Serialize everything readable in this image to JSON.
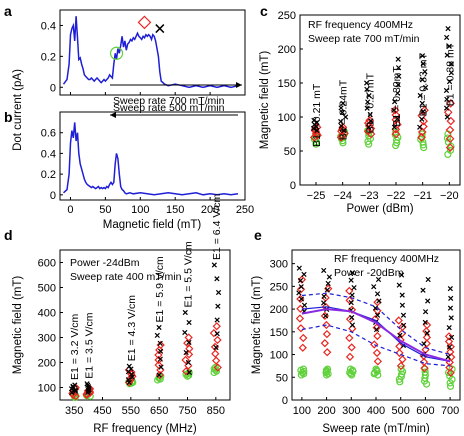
{
  "panels": {
    "a": "a",
    "b": "b",
    "c": "c",
    "d": "d",
    "e": "e"
  },
  "colors": {
    "blue": "#1f1fd6",
    "red": "#e8261f",
    "green": "#5fd13a",
    "black": "#000000",
    "purple": "#8a2be2"
  },
  "chart_data": [
    {
      "id": "a",
      "type": "line",
      "ylabel": "Dot current (pA)",
      "yticks": [
        "0",
        "0.2",
        "0.4"
      ],
      "ylim": [
        -0.05,
        0.5
      ],
      "xlim": [
        -15,
        250
      ],
      "annotation": "Sweep rate  700 mT/min",
      "x": [
        -10,
        -5,
        -2,
        0,
        2,
        4,
        6,
        8,
        10,
        12,
        14,
        16,
        18,
        20,
        22,
        24,
        26,
        28,
        30,
        32,
        34,
        36,
        38,
        40,
        42,
        44,
        46,
        48,
        50,
        52,
        54,
        56,
        58,
        60,
        62,
        64,
        66,
        68,
        70,
        72,
        74,
        76,
        78,
        80,
        82,
        84,
        86,
        88,
        90,
        92,
        94,
        96,
        98,
        100,
        102,
        104,
        106,
        108,
        110,
        112,
        114,
        116,
        118,
        120,
        122,
        124,
        126,
        128,
        130,
        135,
        140,
        150,
        160,
        170,
        180,
        190,
        200,
        210,
        220,
        230,
        240
      ],
      "y": [
        0.02,
        0.05,
        0.15,
        0.34,
        0.38,
        0.4,
        0.3,
        0.46,
        0.32,
        0.18,
        0.19,
        0.15,
        0.12,
        0.08,
        0.07,
        0.06,
        0.05,
        0.05,
        0.06,
        0.05,
        0.04,
        0.05,
        0.06,
        0.05,
        0.04,
        0.03,
        0.04,
        0.05,
        0.04,
        0.05,
        0.06,
        0.08,
        0.07,
        0.06,
        0.15,
        0.22,
        0.18,
        0.25,
        0.22,
        0.27,
        0.33,
        0.26,
        0.3,
        0.24,
        0.28,
        0.29,
        0.31,
        0.3,
        0.32,
        0.31,
        0.33,
        0.35,
        0.33,
        0.32,
        0.31,
        0.33,
        0.32,
        0.34,
        0.33,
        0.34,
        0.33,
        0.31,
        0.34,
        0.33,
        0.3,
        0.25,
        0.2,
        0.1,
        0.04,
        0.02,
        0.01,
        0.02,
        0.01,
        0.0,
        0.01,
        0.0,
        0.01,
        0.0,
        0.01,
        0.0,
        0.01
      ],
      "markers": [
        {
          "kind": "circle",
          "x": 66,
          "y": 0.22,
          "color": "#5fd13a"
        },
        {
          "kind": "diamond",
          "x": 106,
          "y": 0.42,
          "color": "#e8261f"
        },
        {
          "kind": "cross",
          "x": 128,
          "y": 0.38,
          "color": "#000000"
        }
      ]
    },
    {
      "id": "b",
      "type": "line",
      "ylabel": "Dot current (pA)",
      "xlabel": "Magnetic field (mT)",
      "yticks": [
        "0",
        "0.2",
        "0.4",
        "0.6"
      ],
      "xticks": [
        "0",
        "50",
        "100",
        "150",
        "200",
        "250"
      ],
      "ylim": [
        -0.05,
        0.8
      ],
      "xlim": [
        -15,
        250
      ],
      "annotation": "Sweep rate  500 mT/min",
      "x": [
        -10,
        -5,
        -2,
        0,
        2,
        4,
        6,
        8,
        10,
        12,
        14,
        16,
        18,
        20,
        22,
        24,
        26,
        28,
        30,
        32,
        34,
        36,
        38,
        40,
        42,
        44,
        46,
        48,
        50,
        52,
        54,
        56,
        58,
        60,
        62,
        64,
        66,
        68,
        70,
        72,
        74,
        76,
        78,
        80,
        85,
        90,
        100,
        110,
        120,
        130,
        140,
        150,
        160,
        170,
        180,
        190,
        200,
        210,
        220,
        230,
        240
      ],
      "y": [
        0.02,
        0.05,
        0.2,
        0.5,
        0.62,
        0.55,
        0.7,
        0.52,
        0.6,
        0.4,
        0.3,
        0.25,
        0.2,
        0.15,
        0.12,
        0.1,
        0.09,
        0.08,
        0.07,
        0.08,
        0.07,
        0.06,
        0.07,
        0.08,
        0.06,
        0.07,
        0.06,
        0.07,
        0.06,
        0.08,
        0.07,
        0.1,
        0.12,
        0.1,
        0.12,
        0.3,
        0.4,
        0.35,
        0.2,
        0.08,
        0.05,
        0.04,
        0.02,
        0.01,
        0.02,
        0.01,
        0.02,
        0.01,
        0.0,
        0.01,
        0.02,
        0.01,
        0.0,
        0.01,
        0.02,
        0.0,
        0.01,
        0.0,
        0.01,
        0.0,
        0.01
      ]
    },
    {
      "id": "c",
      "type": "scatter",
      "xlabel": "Power (dBm)",
      "ylabel": "Magnetic field (mT)",
      "xticks": [
        "-25",
        "-24",
        "-23",
        "-22",
        "-21",
        "-20"
      ],
      "yticks": [
        "0",
        "50",
        "100",
        "150",
        "200",
        "250"
      ],
      "xlim": [
        -25.6,
        -19.6
      ],
      "ylim": [
        0,
        250
      ],
      "text": [
        "RF frequency 400MHz",
        "Sweep rate  700 mT/min"
      ],
      "b_labels": [
        "B1 = 0.21 mT",
        "B1 = 0.24mT",
        "B1 = 0.27mT",
        "B1 = 0.30mT",
        "B1 = 0.33 mT",
        "B1 = 0.38 mT"
      ],
      "x": [
        -25,
        -24,
        -23,
        -22,
        -21,
        -20
      ],
      "green_min": [
        60,
        62,
        60,
        58,
        55,
        45
      ],
      "green_max": [
        78,
        78,
        80,
        78,
        75,
        75
      ],
      "red_min": [
        70,
        70,
        75,
        75,
        70,
        55
      ],
      "red_max": [
        85,
        85,
        95,
        110,
        110,
        120
      ],
      "black_min": [
        80,
        80,
        85,
        85,
        85,
        100
      ],
      "black_max": [
        95,
        120,
        150,
        185,
        190,
        230
      ]
    },
    {
      "id": "d",
      "type": "scatter",
      "xlabel": "RF frequency (MHz)",
      "ylabel": "Magnetic field (mT)",
      "xticks": [
        "350",
        "450",
        "550",
        "650",
        "750",
        "850"
      ],
      "yticks": [
        "100",
        "200",
        "300",
        "400",
        "500",
        "600"
      ],
      "xlim": [
        300,
        900
      ],
      "ylim": [
        50,
        650
      ],
      "text": [
        "Power -24dBm",
        "Sweep rate  400 mT/min"
      ],
      "e_labels": [
        "E1 = 3.2 V/cm",
        "E1 = 3.5 V/cm",
        "E1 = 4.3 V/cm",
        "E1 = 5.9 V/cm",
        "E1 = 5.5 V/cm",
        "E1 = 6.4 V/cm"
      ],
      "x": [
        350,
        400,
        550,
        650,
        750,
        850
      ],
      "green_min": [
        60,
        65,
        115,
        130,
        145,
        160
      ],
      "green_max": [
        75,
        75,
        125,
        145,
        160,
        180
      ],
      "red_min": [
        65,
        70,
        120,
        150,
        165,
        180
      ],
      "red_max": [
        100,
        95,
        170,
        270,
        300,
        345
      ],
      "black_min": [
        80,
        80,
        120,
        150,
        160,
        260
      ],
      "black_max": [
        110,
        115,
        185,
        340,
        400,
        590
      ]
    },
    {
      "id": "e",
      "type": "scatter",
      "xlabel": "Sweep rate (mT/min)",
      "ylabel": "Magnetic field (mT)",
      "xticks": [
        "100",
        "200",
        "300",
        "400",
        "500",
        "600",
        "700"
      ],
      "yticks": [
        "0",
        "50",
        "100",
        "150",
        "200",
        "250",
        "300"
      ],
      "xlim": [
        60,
        740
      ],
      "ylim": [
        0,
        330
      ],
      "text": [
        "RF frequency 400MHz",
        "Power -20dBm"
      ],
      "x": [
        100,
        200,
        300,
        400,
        500,
        600,
        700
      ],
      "green_min": [
        55,
        55,
        55,
        55,
        40,
        35,
        30
      ],
      "green_max": [
        68,
        68,
        68,
        68,
        68,
        68,
        68
      ],
      "red_min": [
        115,
        105,
        95,
        85,
        75,
        70,
        60
      ],
      "red_max": [
        265,
        245,
        240,
        215,
        175,
        165,
        140
      ],
      "black_min": [
        195,
        185,
        165,
        155,
        120,
        100,
        95
      ],
      "black_max": [
        290,
        285,
        280,
        265,
        275,
        265,
        245
      ],
      "fit_purple": [
        190,
        200,
        195,
        170,
        130,
        100,
        85
      ],
      "dashed_upper": [
        230,
        235,
        225,
        205,
        155,
        115,
        100
      ],
      "dashed_lower": [
        155,
        165,
        150,
        120,
        100,
        80,
        75
      ],
      "blue_solid": [
        200,
        205,
        195,
        175,
        125,
        95,
        85
      ]
    }
  ]
}
